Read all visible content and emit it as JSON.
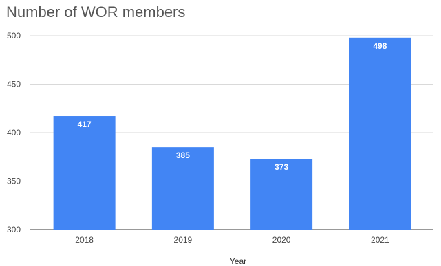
{
  "chart_data": {
    "type": "bar",
    "title": "Number of WOR members",
    "xlabel": "Year",
    "ylabel": "",
    "categories": [
      "2018",
      "2019",
      "2020",
      "2021"
    ],
    "values": [
      417,
      385,
      373,
      498
    ],
    "data_labels": [
      "417",
      "385",
      "373",
      "498"
    ],
    "ylim": [
      300,
      500
    ],
    "yticks": [
      300,
      350,
      400,
      450,
      500
    ],
    "grid": true,
    "legend": "none",
    "bar_color": "#4285f4",
    "gridline_color": "#d9d9d9"
  }
}
